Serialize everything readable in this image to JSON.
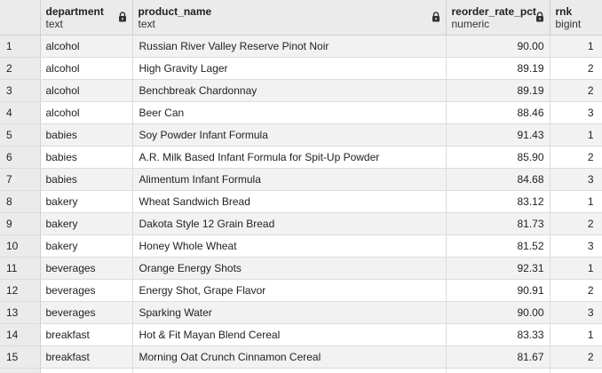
{
  "columns": [
    {
      "name": "department",
      "type": "text"
    },
    {
      "name": "product_name",
      "type": "text"
    },
    {
      "name": "reorder_rate_pct",
      "type": "numeric"
    },
    {
      "name": "rnk",
      "type": "bigint"
    }
  ],
  "icons": {
    "lock": "lock-icon"
  },
  "rows": [
    {
      "idx": "1",
      "department": "alcohol",
      "product_name": "Russian River Valley Reserve Pinot Noir",
      "reorder_rate_pct": "90.00",
      "rnk": "1"
    },
    {
      "idx": "2",
      "department": "alcohol",
      "product_name": "High Gravity Lager",
      "reorder_rate_pct": "89.19",
      "rnk": "2"
    },
    {
      "idx": "3",
      "department": "alcohol",
      "product_name": "Benchbreak Chardonnay",
      "reorder_rate_pct": "89.19",
      "rnk": "2"
    },
    {
      "idx": "4",
      "department": "alcohol",
      "product_name": "Beer Can",
      "reorder_rate_pct": "88.46",
      "rnk": "3"
    },
    {
      "idx": "5",
      "department": "babies",
      "product_name": "Soy Powder Infant Formula",
      "reorder_rate_pct": "91.43",
      "rnk": "1"
    },
    {
      "idx": "6",
      "department": "babies",
      "product_name": "A.R. Milk Based Infant Formula for Spit-Up Powder",
      "reorder_rate_pct": "85.90",
      "rnk": "2"
    },
    {
      "idx": "7",
      "department": "babies",
      "product_name": "Alimentum Infant Formula",
      "reorder_rate_pct": "84.68",
      "rnk": "3"
    },
    {
      "idx": "8",
      "department": "bakery",
      "product_name": "Wheat Sandwich Bread",
      "reorder_rate_pct": "83.12",
      "rnk": "1"
    },
    {
      "idx": "9",
      "department": "bakery",
      "product_name": "Dakota Style 12 Grain Bread",
      "reorder_rate_pct": "81.73",
      "rnk": "2"
    },
    {
      "idx": "10",
      "department": "bakery",
      "product_name": "Honey Whole Wheat",
      "reorder_rate_pct": "81.52",
      "rnk": "3"
    },
    {
      "idx": "11",
      "department": "beverages",
      "product_name": "Orange Energy Shots",
      "reorder_rate_pct": "92.31",
      "rnk": "1"
    },
    {
      "idx": "12",
      "department": "beverages",
      "product_name": "Energy Shot, Grape Flavor",
      "reorder_rate_pct": "90.91",
      "rnk": "2"
    },
    {
      "idx": "13",
      "department": "beverages",
      "product_name": "Sparking Water",
      "reorder_rate_pct": "90.00",
      "rnk": "3"
    },
    {
      "idx": "14",
      "department": "breakfast",
      "product_name": "Hot & Fit Mayan Blend Cereal",
      "reorder_rate_pct": "83.33",
      "rnk": "1"
    },
    {
      "idx": "15",
      "department": "breakfast",
      "product_name": "Morning Oat Crunch Cinnamon Cereal",
      "reorder_rate_pct": "81.67",
      "rnk": "2"
    },
    {
      "idx": "",
      "department": "",
      "product_name": "",
      "reorder_rate_pct": "",
      "rnk": ""
    }
  ]
}
